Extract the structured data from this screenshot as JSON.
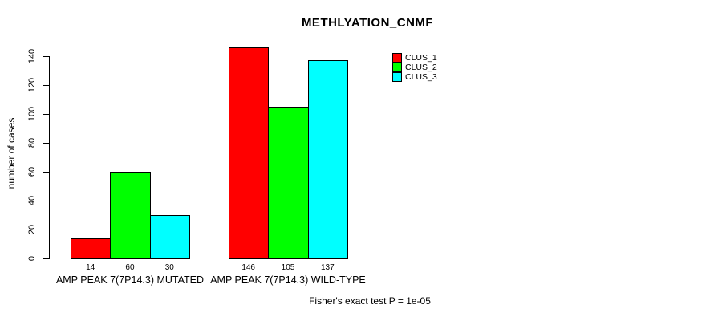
{
  "title": "METHLYATION_CNMF",
  "annotation": "Fisher's exact test P = 1e-05",
  "chart_data": {
    "type": "bar",
    "title": "METHLYATION_CNMF",
    "xlabel": "",
    "ylabel": "number of cases",
    "ylim": [
      0,
      140
    ],
    "yticks": [
      0,
      20,
      40,
      60,
      80,
      100,
      120,
      140
    ],
    "grid": false,
    "legend_position": "top-right",
    "categories": [
      "AMP PEAK 7(7P14.3) MUTATED",
      "AMP PEAK 7(7P14.3) WILD-TYPE"
    ],
    "series": [
      {
        "name": "CLUS_1",
        "color": "#FF0000",
        "values": [
          14,
          146
        ]
      },
      {
        "name": "CLUS_2",
        "color": "#00FF00",
        "values": [
          60,
          105
        ]
      },
      {
        "name": "CLUS_3",
        "color": "#00FFFF",
        "values": [
          30,
          137
        ]
      }
    ],
    "groups": [
      {
        "label": "AMP PEAK 7(7P14.3) MUTATED",
        "values": [
          14,
          60,
          30
        ]
      },
      {
        "label": "AMP PEAK 7(7P14.3) WILD-TYPE",
        "values": [
          146,
          105,
          137
        ]
      }
    ],
    "bar_value_labels": [
      14,
      60,
      30,
      146,
      105,
      137
    ],
    "annotation": "Fisher's exact test P = 1e-05"
  }
}
